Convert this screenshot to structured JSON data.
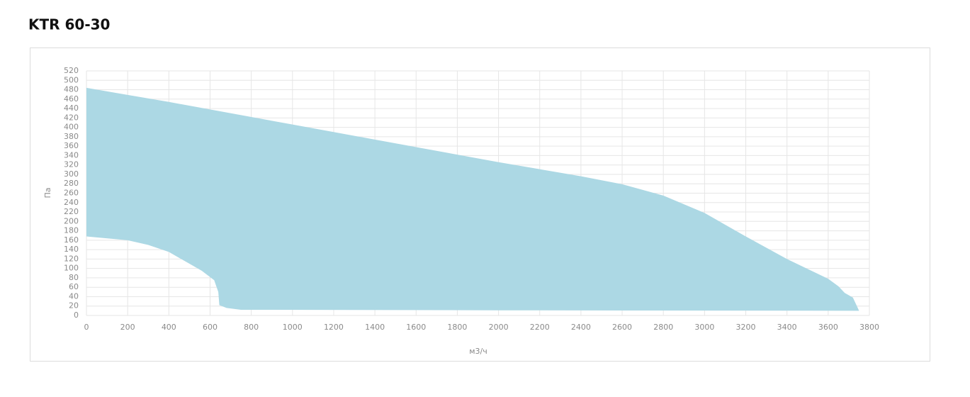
{
  "chart_data": {
    "type": "area",
    "title": "KTR 60-30",
    "xlabel": "м3/ч",
    "ylabel": "Па",
    "x": [
      0,
      200,
      400,
      600,
      800,
      1000,
      1200,
      1400,
      1600,
      1800,
      2000,
      2200,
      2400,
      2600,
      2800,
      3000,
      3200,
      3400,
      3600,
      3650,
      3680,
      3720,
      3750,
      2000,
      900,
      750,
      680,
      645,
      640,
      620,
      560,
      500,
      400,
      300,
      200,
      0
    ],
    "values": [
      484,
      469,
      454,
      438,
      422,
      406,
      390,
      374,
      358,
      342,
      326,
      311,
      296,
      279,
      255,
      218,
      168,
      120,
      78,
      62,
      48,
      38,
      10,
      11,
      12,
      12,
      16,
      22,
      50,
      75,
      95,
      110,
      135,
      150,
      160,
      168
    ],
    "color": "#acd8e4",
    "xlim": [
      0,
      3800
    ],
    "xticks": [
      0,
      200,
      400,
      600,
      800,
      1000,
      1200,
      1400,
      1600,
      1800,
      2000,
      2200,
      2400,
      2600,
      2800,
      3000,
      3200,
      3400,
      3600,
      3800
    ],
    "ylim": [
      0,
      520
    ],
    "yticks": [
      0,
      20,
      40,
      60,
      80,
      100,
      120,
      140,
      160,
      180,
      200,
      220,
      240,
      260,
      280,
      300,
      320,
      340,
      360,
      380,
      400,
      420,
      440,
      460,
      480,
      500,
      520
    ],
    "grid": true
  }
}
